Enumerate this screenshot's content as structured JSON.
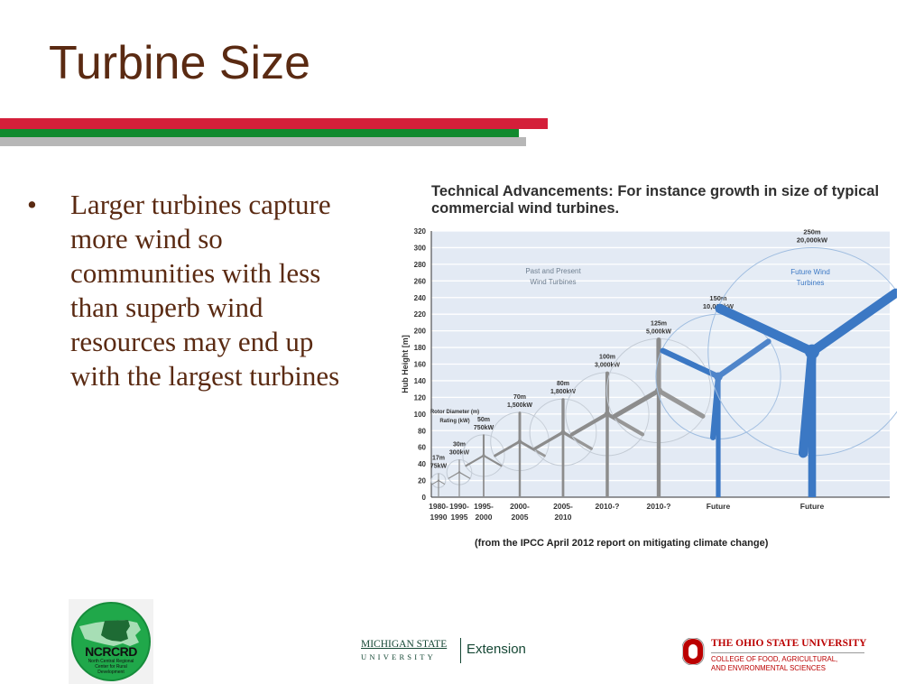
{
  "slide": {
    "title": "Turbine Size",
    "bullets": [
      "Larger turbines capture more wind so communities with less than superb wind resources may end up with the largest turbines"
    ]
  },
  "colors": {
    "title_text": "#5a2a12",
    "rule_red": "#d41f3a",
    "rule_green": "#118a2e",
    "rule_gray": "#b7b7b7",
    "turbine_past": "#8c8c8c",
    "turbine_future": "#3b78c4",
    "chart_background": "#e3eaf4"
  },
  "figure": {
    "title": "Technical Advancements: For instance growth in size of typical commercial wind turbines.",
    "caption": "(from the IPCC April 2012 report on mitigating climate change)",
    "group_labels": {
      "past": [
        "Past and Present",
        "Wind Turbines"
      ],
      "future": [
        "Future Wind",
        "Turbines"
      ]
    },
    "legend_labels": [
      "Rotor Diameter (m)",
      "Rating (kW)"
    ]
  },
  "chart_data": {
    "type": "bar",
    "title": "Technical Advancements: For instance growth in size of typical commercial wind turbines.",
    "ylabel": "Hub Height [m]",
    "ylim": [
      0,
      320
    ],
    "yticks": [
      0,
      20,
      40,
      60,
      80,
      100,
      120,
      140,
      160,
      180,
      200,
      220,
      240,
      260,
      280,
      300,
      320
    ],
    "grid": true,
    "turbines": [
      {
        "years": [
          "1980-",
          "1990"
        ],
        "diameter_label": "17m",
        "rating_label": "75kW",
        "diameter_m": 17,
        "hub_height_m": 20,
        "group": "past"
      },
      {
        "years": [
          "1990-",
          "1995"
        ],
        "diameter_label": "30m",
        "rating_label": "300kW",
        "diameter_m": 30,
        "hub_height_m": 30,
        "group": "past"
      },
      {
        "years": [
          "1995-",
          "2000"
        ],
        "diameter_label": "50m",
        "rating_label": "750kW",
        "diameter_m": 50,
        "hub_height_m": 50,
        "group": "past"
      },
      {
        "years": [
          "2000-",
          "2005"
        ],
        "diameter_label": "70m",
        "rating_label": "1,500kW",
        "diameter_m": 70,
        "hub_height_m": 67,
        "group": "past"
      },
      {
        "years": [
          "2005-",
          "2010"
        ],
        "diameter_label": "80m",
        "rating_label": "1,800kW",
        "diameter_m": 80,
        "hub_height_m": 78,
        "group": "past"
      },
      {
        "years": [
          "2010-?"
        ],
        "diameter_label": "100m",
        "rating_label": "3,000kW",
        "diameter_m": 100,
        "hub_height_m": 100,
        "group": "past"
      },
      {
        "years": [
          "2010-?"
        ],
        "diameter_label": "125m",
        "rating_label": "5,000kW",
        "diameter_m": 125,
        "hub_height_m": 128,
        "group": "past"
      },
      {
        "years": [
          "Future"
        ],
        "diameter_label": "150m",
        "rating_label": "10,000kW",
        "diameter_m": 150,
        "hub_height_m": 145,
        "group": "future"
      },
      {
        "years": [
          "Future"
        ],
        "diameter_label": "250m",
        "rating_label": "20,000kW",
        "diameter_m": 250,
        "hub_height_m": 175,
        "group": "future"
      }
    ]
  },
  "logos": {
    "ncrcrd": {
      "name": "NCRCRD",
      "subtitle": "North Central Regional Center for Rural Development",
      "icon": "us-map-icon"
    },
    "msu": {
      "line1": "MICHIGAN STATE",
      "line2": "UNIVERSITY",
      "extension": "Extension"
    },
    "osu": {
      "name": "THE OHIO STATE UNIVERSITY",
      "college_line1": "COLLEGE OF FOOD, AGRICULTURAL,",
      "college_line2": "AND ENVIRONMENTAL SCIENCES",
      "icon": "block-o-icon"
    }
  }
}
